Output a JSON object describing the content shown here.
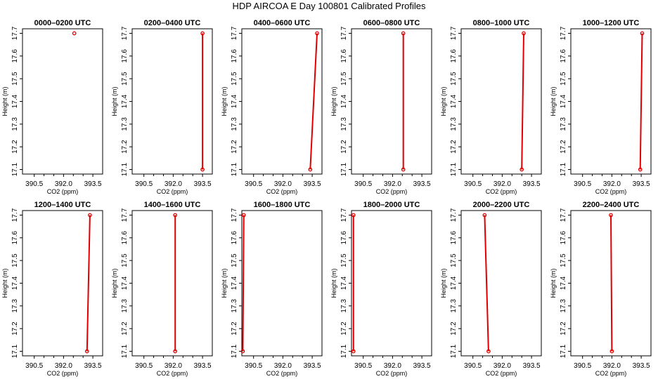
{
  "page": {
    "title": "HDP AIRCOA E  Day 100801  Calibrated Profiles"
  },
  "colors": {
    "series": "#e00000",
    "axis": "#000000"
  },
  "chart_data": [
    {
      "type": "line",
      "title": "0000–0200 UTC",
      "xlabel": "CO2 (ppm)",
      "ylabel": "Height (m)",
      "xlim": [
        389.9,
        394.0
      ],
      "ylim": [
        17.08,
        17.72
      ],
      "xticks": [
        390.5,
        392.0,
        393.5
      ],
      "xminor": [
        391.0,
        391.5,
        392.5,
        393.0
      ],
      "yticks": [
        17.1,
        17.2,
        17.3,
        17.4,
        17.5,
        17.6,
        17.7
      ],
      "series": [
        {
          "x": [
            392.55
          ],
          "y": [
            17.7
          ]
        }
      ],
      "grid": false
    },
    {
      "type": "line",
      "title": "0200–0400 UTC",
      "xlabel": "CO2 (ppm)",
      "ylabel": "Height (m)",
      "xlim": [
        389.9,
        394.0
      ],
      "ylim": [
        17.08,
        17.72
      ],
      "xticks": [
        390.5,
        392.0,
        393.5
      ],
      "xminor": [
        391.0,
        391.5,
        392.5,
        393.0
      ],
      "yticks": [
        17.1,
        17.2,
        17.3,
        17.4,
        17.5,
        17.6,
        17.7
      ],
      "series": [
        {
          "x": [
            393.5,
            393.5
          ],
          "y": [
            17.1,
            17.7
          ]
        }
      ],
      "grid": false
    },
    {
      "type": "line",
      "title": "0400–0600 UTC",
      "xlabel": "CO2 (ppm)",
      "ylabel": "Height (m)",
      "xlim": [
        389.9,
        394.0
      ],
      "ylim": [
        17.08,
        17.72
      ],
      "xticks": [
        390.5,
        392.0,
        393.5
      ],
      "xminor": [
        391.0,
        391.5,
        392.5,
        393.0
      ],
      "yticks": [
        17.1,
        17.2,
        17.3,
        17.4,
        17.5,
        17.6,
        17.7
      ],
      "series": [
        {
          "x": [
            393.4,
            393.75
          ],
          "y": [
            17.1,
            17.7
          ]
        }
      ],
      "grid": false
    },
    {
      "type": "line",
      "title": "0600–0800 UTC",
      "xlabel": "CO2 (ppm)",
      "ylabel": "Height (m)",
      "xlim": [
        389.9,
        394.0
      ],
      "ylim": [
        17.08,
        17.72
      ],
      "xticks": [
        390.5,
        392.0,
        393.5
      ],
      "xminor": [
        391.0,
        391.5,
        392.5,
        393.0
      ],
      "yticks": [
        17.1,
        17.2,
        17.3,
        17.4,
        17.5,
        17.6,
        17.7
      ],
      "series": [
        {
          "x": [
            392.55,
            392.55
          ],
          "y": [
            17.1,
            17.7
          ]
        }
      ],
      "grid": false
    },
    {
      "type": "line",
      "title": "0800–1000 UTC",
      "xlabel": "CO2 (ppm)",
      "ylabel": "Height (m)",
      "xlim": [
        389.9,
        394.0
      ],
      "ylim": [
        17.08,
        17.72
      ],
      "xticks": [
        390.5,
        392.0,
        393.5
      ],
      "xminor": [
        391.0,
        391.5,
        392.5,
        393.0
      ],
      "yticks": [
        17.1,
        17.2,
        17.3,
        17.4,
        17.5,
        17.6,
        17.7
      ],
      "series": [
        {
          "x": [
            393.0,
            393.1
          ],
          "y": [
            17.1,
            17.7
          ]
        }
      ],
      "grid": false
    },
    {
      "type": "line",
      "title": "1000–1200 UTC",
      "xlabel": "CO2 (ppm)",
      "ylabel": "Height (m)",
      "xlim": [
        389.9,
        394.0
      ],
      "ylim": [
        17.08,
        17.72
      ],
      "xticks": [
        390.5,
        392.0,
        393.5
      ],
      "xminor": [
        391.0,
        391.5,
        392.5,
        393.0
      ],
      "yticks": [
        17.1,
        17.2,
        17.3,
        17.4,
        17.5,
        17.6,
        17.7
      ],
      "series": [
        {
          "x": [
            393.45,
            393.55
          ],
          "y": [
            17.1,
            17.7
          ]
        }
      ],
      "grid": false
    },
    {
      "type": "line",
      "title": "1200–1400 UTC",
      "xlabel": "CO2 (ppm)",
      "ylabel": "Height (m)",
      "xlim": [
        389.9,
        394.0
      ],
      "ylim": [
        17.08,
        17.72
      ],
      "xticks": [
        390.5,
        392.0,
        393.5
      ],
      "xminor": [
        391.0,
        391.5,
        392.5,
        393.0
      ],
      "yticks": [
        17.1,
        17.2,
        17.3,
        17.4,
        17.5,
        17.6,
        17.7
      ],
      "series": [
        {
          "x": [
            393.2,
            393.35
          ],
          "y": [
            17.1,
            17.7
          ]
        }
      ],
      "grid": false
    },
    {
      "type": "line",
      "title": "1400–1600 UTC",
      "xlabel": "CO2 (ppm)",
      "ylabel": "Height (m)",
      "xlim": [
        389.9,
        394.0
      ],
      "ylim": [
        17.08,
        17.72
      ],
      "xticks": [
        390.5,
        392.0,
        393.5
      ],
      "xminor": [
        391.0,
        391.5,
        392.5,
        393.0
      ],
      "yticks": [
        17.1,
        17.2,
        17.3,
        17.4,
        17.5,
        17.6,
        17.7
      ],
      "series": [
        {
          "x": [
            392.1,
            392.1
          ],
          "y": [
            17.1,
            17.7
          ]
        }
      ],
      "grid": false
    },
    {
      "type": "line",
      "title": "1600–1800 UTC",
      "xlabel": "CO2 (ppm)",
      "ylabel": "Height (m)",
      "xlim": [
        389.9,
        394.0
      ],
      "ylim": [
        17.08,
        17.72
      ],
      "xticks": [
        390.5,
        392.0,
        393.5
      ],
      "xminor": [
        391.0,
        391.5,
        392.5,
        393.0
      ],
      "yticks": [
        17.1,
        17.2,
        17.3,
        17.4,
        17.5,
        17.6,
        17.7
      ],
      "series": [
        {
          "x": [
            389.95,
            390.0
          ],
          "y": [
            17.1,
            17.7
          ]
        }
      ],
      "grid": false
    },
    {
      "type": "line",
      "title": "1800–2000 UTC",
      "xlabel": "CO2 (ppm)",
      "ylabel": "Height (m)",
      "xlim": [
        389.9,
        394.0
      ],
      "ylim": [
        17.08,
        17.72
      ],
      "xticks": [
        390.5,
        392.0,
        393.5
      ],
      "xminor": [
        391.0,
        391.5,
        392.5,
        393.0
      ],
      "yticks": [
        17.1,
        17.2,
        17.3,
        17.4,
        17.5,
        17.6,
        17.7
      ],
      "series": [
        {
          "x": [
            390.0,
            390.0
          ],
          "y": [
            17.1,
            17.7
          ]
        }
      ],
      "grid": false
    },
    {
      "type": "line",
      "title": "2000–2200 UTC",
      "xlabel": "CO2 (ppm)",
      "ylabel": "Height (m)",
      "xlim": [
        389.9,
        394.0
      ],
      "ylim": [
        17.08,
        17.72
      ],
      "xticks": [
        390.5,
        392.0,
        393.5
      ],
      "xminor": [
        391.0,
        391.5,
        392.5,
        393.0
      ],
      "yticks": [
        17.1,
        17.2,
        17.3,
        17.4,
        17.5,
        17.6,
        17.7
      ],
      "series": [
        {
          "x": [
            391.3,
            391.1
          ],
          "y": [
            17.1,
            17.7
          ]
        }
      ],
      "grid": false
    },
    {
      "type": "line",
      "title": "2200–2400 UTC",
      "xlabel": "CO2 (ppm)",
      "ylabel": "Height (m)",
      "xlim": [
        389.9,
        394.0
      ],
      "ylim": [
        17.08,
        17.72
      ],
      "xticks": [
        390.5,
        392.0,
        393.5
      ],
      "xminor": [
        391.0,
        391.5,
        392.5,
        393.0
      ],
      "yticks": [
        17.1,
        17.2,
        17.3,
        17.4,
        17.5,
        17.6,
        17.7
      ],
      "series": [
        {
          "x": [
            392.0,
            391.95
          ],
          "y": [
            17.1,
            17.7
          ]
        }
      ],
      "grid": false
    }
  ]
}
